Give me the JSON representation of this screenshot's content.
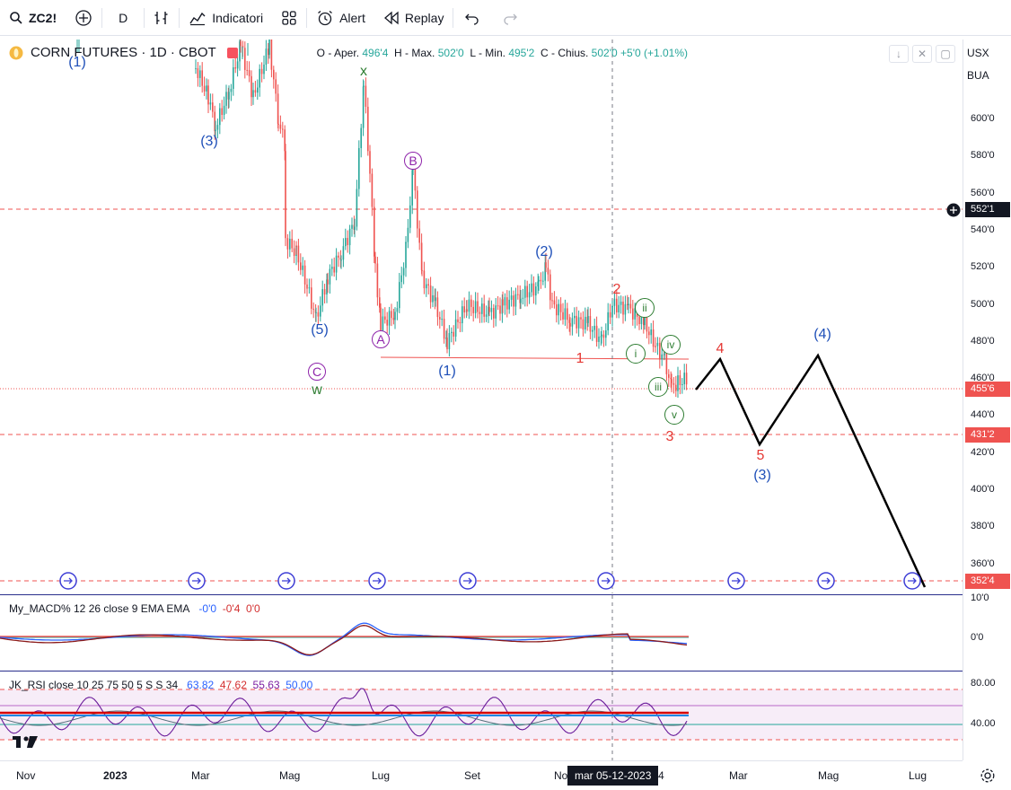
{
  "toolbar": {
    "symbol": "ZC2!",
    "interval": "D",
    "indicators_label": "Indicatori",
    "alert_label": "Alert",
    "replay_label": "Replay"
  },
  "legend": {
    "title": "CORN FUTURES · 1D · CBOT",
    "open_label": "O - Aper.",
    "open_value": "496'4",
    "high_label": "H - Max.",
    "high_value": "502'0",
    "low_label": "L - Min.",
    "low_value": "495'2",
    "close_label": "C - Chius.",
    "close_value": "502'0",
    "change": "+5'0 (+1.01%)"
  },
  "macd_legend": {
    "name": "My_MACD% 12 26 close 9 EMA EMA",
    "v1": "-0'0",
    "v2": "-0'4",
    "v3": "0'0"
  },
  "rsi_legend": {
    "name": "JK_RSI close 10 25 75 50 5 S S 34",
    "v1": "63.82",
    "v2": "47.62",
    "v3": "55.63",
    "v4": "50.00"
  },
  "price_axis": {
    "currency": "USX",
    "exchange": "BUA",
    "ticks": [
      "600'0",
      "580'0",
      "560'0",
      "540'0",
      "520'0",
      "500'0",
      "480'0",
      "460'0",
      "440'0",
      "420'0",
      "400'0",
      "380'0",
      "360'0"
    ],
    "tags": {
      "crosshair": "552'1",
      "last": "455'6",
      "level_1": "431'2",
      "level_2": "352'4"
    },
    "macd_ticks": [
      "10'0",
      "0'0"
    ],
    "rsi_ticks": [
      "80.00",
      "40.00"
    ]
  },
  "time_axis": {
    "labels": [
      "Nov",
      "2023",
      "Mar",
      "Mag",
      "Lug",
      "Set",
      "No",
      "4",
      "Mar",
      "Mag",
      "Lug"
    ],
    "crosshair_date": "mar 05-12-2023"
  },
  "wave_labels": {
    "blue_1_top": "(1)",
    "blue_3": "(3)",
    "blue_5": "(5)",
    "blue_1": "(1)",
    "blue_2": "(2)",
    "blue_3_proj": "(3)",
    "blue_4_proj": "(4)",
    "purple_A": "A",
    "purple_B": "B",
    "purple_C": "C",
    "green_x": "x",
    "green_w": "w",
    "red_1": "1",
    "red_2": "2",
    "red_3": "3",
    "red_4": "4",
    "red_5": "5",
    "green_i": "i",
    "green_ii": "ii",
    "green_iii": "iii",
    "green_iv": "iv",
    "green_v": "v"
  },
  "colors": {
    "up": "#26a69a",
    "down": "#ef5350",
    "wave_blue": "#1e4fb8",
    "wave_red": "#e53935",
    "wave_green": "#2e7d32",
    "wave_purple": "#8e24aa",
    "replay_marker": "#3f3fd6"
  },
  "icons": {
    "search": "search-icon",
    "add": "plus-circle-icon",
    "bars": "candles-icon",
    "indicators": "indicators-icon",
    "layout": "layout-grid-icon",
    "alert": "alarm-clock-icon",
    "replay": "rewind-icon",
    "undo": "undo-icon",
    "redo": "redo-icon"
  }
}
